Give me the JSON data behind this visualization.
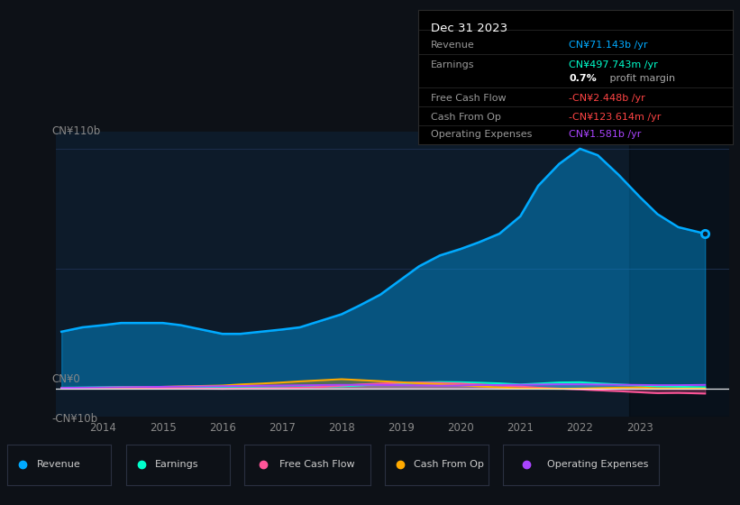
{
  "background_color": "#0d1117",
  "plot_bg_color": "#0d1b2a",
  "title": "Dec 31 2023",
  "ylabel_top": "CN¥110b",
  "ylabel_zero": "CN¥0",
  "ylabel_neg": "-CN¥10b",
  "xlim_start": 2013.2,
  "xlim_end": 2024.5,
  "ylim_min": -13,
  "ylim_max": 118,
  "grid_color": "#1e3050",
  "highlight_x_start": 2022.83,
  "highlight_x_end": 2024.5,
  "years": [
    2013.3,
    2013.65,
    2014.0,
    2014.3,
    2014.65,
    2015.0,
    2015.3,
    2015.65,
    2016.0,
    2016.3,
    2016.65,
    2017.0,
    2017.3,
    2017.65,
    2018.0,
    2018.3,
    2018.65,
    2019.0,
    2019.3,
    2019.65,
    2020.0,
    2020.3,
    2020.65,
    2021.0,
    2021.3,
    2021.65,
    2022.0,
    2022.3,
    2022.65,
    2023.0,
    2023.3,
    2023.65,
    2024.1
  ],
  "revenue": [
    26,
    28,
    29,
    30,
    30,
    30,
    29,
    27,
    25,
    25,
    26,
    27,
    28,
    31,
    34,
    38,
    43,
    50,
    56,
    61,
    64,
    67,
    71,
    79,
    93,
    103,
    110,
    107,
    98,
    88,
    80,
    74,
    71
  ],
  "earnings": [
    0.3,
    0.4,
    0.5,
    0.6,
    0.6,
    0.5,
    0.4,
    0.3,
    0.2,
    0.2,
    0.3,
    0.4,
    0.5,
    0.7,
    0.9,
    1.3,
    1.8,
    2.2,
    2.7,
    2.9,
    2.8,
    2.6,
    2.3,
    1.8,
    2.2,
    2.7,
    2.8,
    2.3,
    1.8,
    1.3,
    0.9,
    0.7,
    0.5
  ],
  "free_cash_flow": [
    -0.1,
    -0.1,
    0.0,
    0.0,
    0.1,
    0.0,
    0.0,
    -0.1,
    -0.2,
    -0.1,
    0.0,
    0.1,
    0.3,
    0.6,
    1.2,
    1.8,
    2.2,
    2.5,
    2.7,
    2.5,
    2.2,
    1.8,
    1.3,
    0.8,
    0.3,
    -0.1,
    -0.5,
    -0.9,
    -1.3,
    -1.8,
    -2.2,
    -2.1,
    -2.4
  ],
  "cash_from_op": [
    0.1,
    0.2,
    0.3,
    0.4,
    0.5,
    0.7,
    0.9,
    1.1,
    1.3,
    1.8,
    2.2,
    2.7,
    3.2,
    3.7,
    4.2,
    3.8,
    3.3,
    2.8,
    2.3,
    1.9,
    1.4,
    0.9,
    0.4,
    0.0,
    -0.1,
    -0.2,
    -0.1,
    0.1,
    0.3,
    0.4,
    0.0,
    -0.1,
    -0.12
  ],
  "operating_expenses": [
    0.2,
    0.3,
    0.4,
    0.5,
    0.6,
    0.7,
    0.8,
    0.9,
    1.0,
    1.1,
    1.2,
    1.3,
    1.4,
    1.5,
    1.6,
    1.6,
    1.55,
    1.45,
    1.35,
    1.25,
    1.35,
    1.45,
    1.55,
    1.65,
    1.75,
    1.85,
    1.85,
    1.75,
    1.65,
    1.55,
    1.45,
    1.45,
    1.58
  ],
  "revenue_color": "#00aaff",
  "earnings_color": "#00ffcc",
  "fcf_color": "#ff5599",
  "cfo_color": "#ffaa00",
  "opex_color": "#aa44ff",
  "legend_items": [
    {
      "label": "Revenue",
      "color": "#00aaff"
    },
    {
      "label": "Earnings",
      "color": "#00ffcc"
    },
    {
      "label": "Free Cash Flow",
      "color": "#ff5599"
    },
    {
      "label": "Cash From Op",
      "color": "#ffaa00"
    },
    {
      "label": "Operating Expenses",
      "color": "#aa44ff"
    }
  ],
  "xticks": [
    2014,
    2015,
    2016,
    2017,
    2018,
    2019,
    2020,
    2021,
    2022,
    2023
  ],
  "info_rows": [
    {
      "label": "Revenue",
      "value": "CN¥71.143b /yr",
      "value_color": "#00aaff"
    },
    {
      "label": "Earnings",
      "value": "CN¥497.743m /yr",
      "value_color": "#00ffcc"
    },
    {
      "label": "",
      "value": "0.7%",
      "value_color": "#ffffff",
      "suffix": " profit margin",
      "suffix_color": "#aaaaaa"
    },
    {
      "label": "Free Cash Flow",
      "value": "-CN¥2.448b /yr",
      "value_color": "#ff4444"
    },
    {
      "label": "Cash From Op",
      "value": "-CN¥123.614m /yr",
      "value_color": "#ff4444"
    },
    {
      "label": "Operating Expenses",
      "value": "CN¥1.581b /yr",
      "value_color": "#aa44ff"
    }
  ]
}
